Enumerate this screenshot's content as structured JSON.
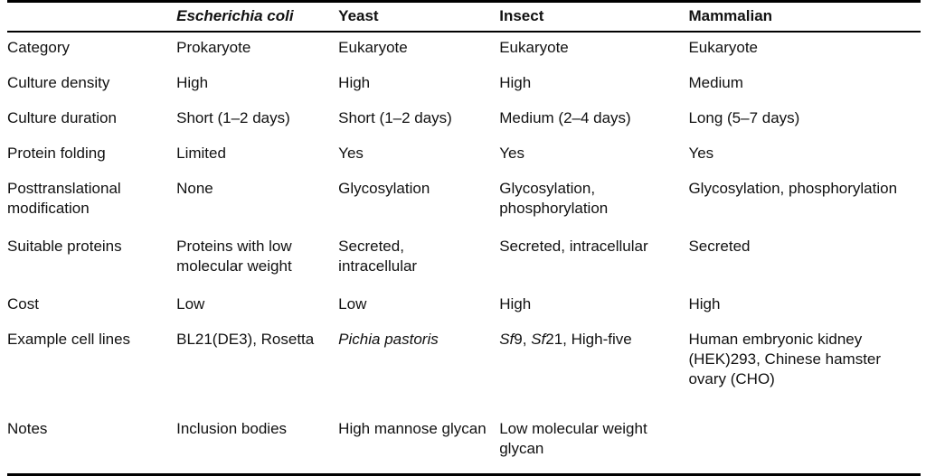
{
  "table": {
    "header": {
      "label_col": "",
      "columns": [
        {
          "label": "Escherichia coli",
          "italic": true
        },
        {
          "label": "Yeast",
          "italic": false
        },
        {
          "label": "Insect",
          "italic": false
        },
        {
          "label": "Mammalian",
          "italic": false
        }
      ]
    },
    "rows": [
      {
        "label": "Category",
        "cells": [
          "Prokaryote",
          "Eukaryote",
          "Eukaryote",
          "Eukaryote"
        ]
      },
      {
        "label": "Culture density",
        "cells": [
          "High",
          "High",
          "High",
          "Medium"
        ]
      },
      {
        "label": "Culture duration",
        "cells": [
          "Short (1–2 days)",
          "Short (1–2 days)",
          "Medium (2–4 days)",
          "Long (5–7 days)"
        ]
      },
      {
        "label": "Protein folding",
        "cells": [
          "Limited",
          "Yes",
          "Yes",
          "Yes"
        ]
      },
      {
        "label": "Posttranslational modification",
        "cells": [
          "None",
          "Glycosylation",
          "Glycosylation, phosphorylation",
          "Glycosylation, phosphorylation"
        ]
      },
      {
        "label": "Suitable proteins",
        "cells": [
          "Proteins with low molecular weight",
          "Secreted, intracellular",
          "Secreted, intracellular",
          "Secreted"
        ]
      },
      {
        "label": "Cost",
        "cells": [
          "Low",
          "Low",
          "High",
          "High"
        ]
      },
      {
        "label": "Example cell lines",
        "cells": [
          "BL21(DE3), Rosetta",
          [
            {
              "t": "Pichia pastoris",
              "i": true
            }
          ],
          [
            {
              "t": "Sf",
              "i": true
            },
            {
              "t": "9, ",
              "i": false
            },
            {
              "t": "Sf",
              "i": true
            },
            {
              "t": "21, High-five",
              "i": false
            }
          ],
          "Human embryonic kidney (HEK)293, Chinese hamster ovary (CHO)"
        ]
      },
      {
        "label": "Notes",
        "cells": [
          "Inclusion bodies",
          "High mannose glycan",
          "Low molecular weight glycan",
          ""
        ],
        "gap_before": true
      }
    ]
  }
}
